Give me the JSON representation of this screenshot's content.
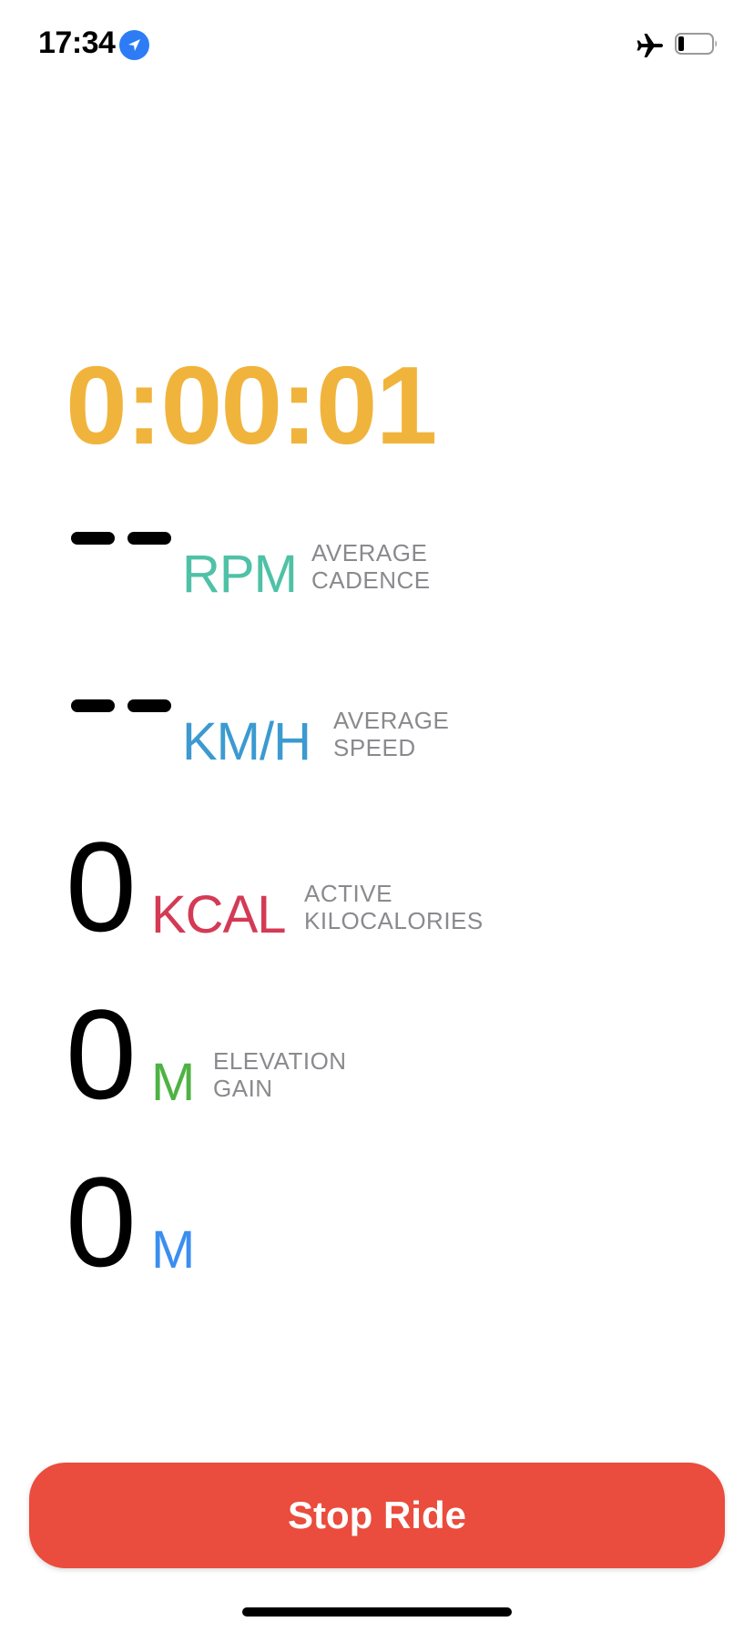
{
  "status_bar": {
    "time": "17:34",
    "icons": [
      "location-icon",
      "airplane-icon",
      "battery-icon"
    ],
    "location_color": "#2d7cf6"
  },
  "timer": {
    "value": "0:00:01",
    "color": "#f0b43c"
  },
  "metrics": {
    "cadence": {
      "value": "--",
      "unit": "RPM",
      "label_line1": "AVERAGE",
      "label_line2": "CADENCE",
      "color": "#4fc1a6"
    },
    "speed": {
      "value": "--",
      "unit": "KM/H",
      "label_line1": "AVERAGE",
      "label_line2": "SPEED",
      "color": "#3c9ad0"
    },
    "kcal": {
      "value": "0",
      "unit": "KCAL",
      "label_line1": "ACTIVE",
      "label_line2": "KILOCALORIES",
      "color": "#d43a55"
    },
    "elevation": {
      "value": "0",
      "unit": "M",
      "label_line1": "ELEVATION",
      "label_line2": "GAIN",
      "color": "#4fb244"
    },
    "distance": {
      "value": "0",
      "unit": "M",
      "color": "#3b8ef0"
    }
  },
  "stop_button": {
    "label": "Stop Ride",
    "color": "#ea4c3d"
  }
}
